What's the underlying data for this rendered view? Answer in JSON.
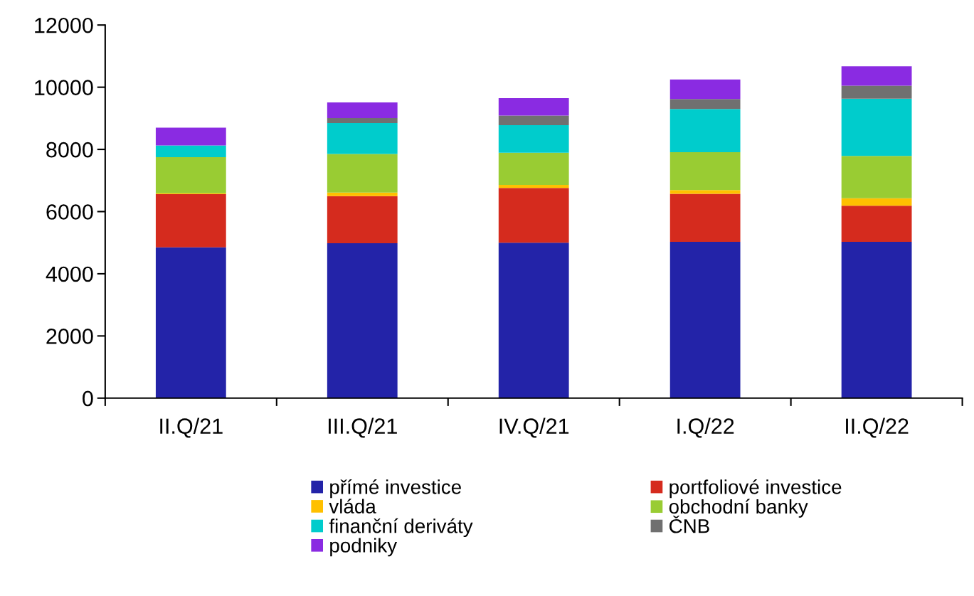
{
  "chart_data": {
    "type": "bar",
    "stacked": true,
    "categories": [
      "II.Q/21",
      "III.Q/21",
      "IV.Q/21",
      "I.Q/22",
      "II.Q/22"
    ],
    "series": [
      {
        "name": "přímé investice",
        "color": "#2323a8",
        "values": [
          4850,
          4980,
          5000,
          5030,
          5030
        ]
      },
      {
        "name": "portfoliové investice",
        "color": "#d52b1e",
        "values": [
          1710,
          1520,
          1760,
          1540,
          1160
        ]
      },
      {
        "name": "vláda",
        "color": "#ffc000",
        "values": [
          30,
          110,
          100,
          120,
          240
        ]
      },
      {
        "name": "obchodní banky",
        "color": "#99cc33",
        "values": [
          1160,
          1240,
          1030,
          1220,
          1360
        ]
      },
      {
        "name": "finanční deriváty",
        "color": "#00cccc",
        "values": [
          380,
          1000,
          890,
          1390,
          1840
        ]
      },
      {
        "name": "ČNB",
        "color": "#707070",
        "values": [
          0,
          160,
          310,
          320,
          420
        ]
      },
      {
        "name": "podniky",
        "color": "#8a2be2",
        "values": [
          570,
          500,
          560,
          630,
          620
        ]
      }
    ],
    "ylim": [
      0,
      12000
    ],
    "yticks": [
      0,
      2000,
      4000,
      6000,
      8000,
      10000,
      12000
    ],
    "grid": false,
    "legend": "bottom"
  }
}
